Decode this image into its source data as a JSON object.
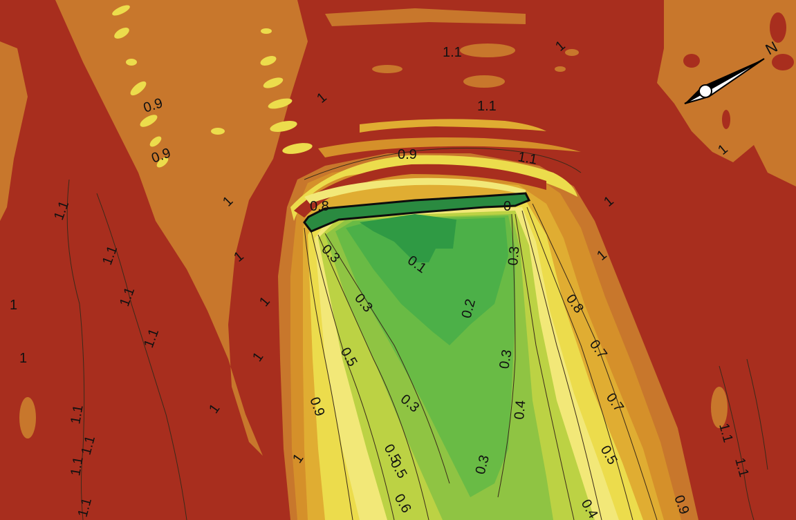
{
  "legend_colors": {
    "red": "#a82e1e",
    "orange": "#c8772c",
    "dark_orange": "#d5902a",
    "gold": "#e0ad32",
    "yellow": "#ecdc4c",
    "pale_yellow": "#f2e878",
    "lime": "#bcd244",
    "light_green": "#8fc443",
    "green": "#58b545",
    "mid_green": "#41a745",
    "dark_green": "#2a8a40",
    "contour_line": "#3a2a1a",
    "breakwater": "#0d0d0d"
  },
  "north_arrow": {
    "label": "N",
    "icon": "north-arrow-icon"
  },
  "contour_labels": [
    {
      "id": "1-1-top",
      "text": "1.1"
    },
    {
      "id": "1-1-center",
      "text": "1.1"
    },
    {
      "id": "0-9-upleft",
      "text": "0.9"
    },
    {
      "id": "0-9-left",
      "text": "0.9"
    },
    {
      "id": "0-9-center",
      "text": "0.9"
    },
    {
      "id": "1-1-right",
      "text": "1.1"
    },
    {
      "id": "1-far-left-a",
      "text": "1"
    },
    {
      "id": "1-far-left-b",
      "text": "1"
    },
    {
      "id": "1-midleft",
      "text": "1"
    },
    {
      "id": "1-upper",
      "text": "1"
    },
    {
      "id": "1-mid-a",
      "text": "1"
    },
    {
      "id": "1-mid-b",
      "text": "1"
    },
    {
      "id": "1-mid-c",
      "text": "1"
    },
    {
      "id": "1-low",
      "text": "1"
    },
    {
      "id": "1-right-a",
      "text": "1"
    },
    {
      "id": "1-right-b",
      "text": "1"
    },
    {
      "id": "1-top-right",
      "text": "1"
    },
    {
      "id": "1-top-right-b",
      "text": "1"
    },
    {
      "id": "1-far-right",
      "text": "1"
    },
    {
      "id": "0-8-left",
      "text": "0.8"
    },
    {
      "id": "0-breakwater",
      "text": "0"
    },
    {
      "id": "0-1",
      "text": "0.1"
    },
    {
      "id": "0-2",
      "text": "0.2"
    },
    {
      "id": "0-3-a",
      "text": "0.3"
    },
    {
      "id": "0-3-b",
      "text": "0.3"
    },
    {
      "id": "0-3-c",
      "text": "0.3"
    },
    {
      "id": "0-3-d",
      "text": "0.3"
    },
    {
      "id": "0-3-e",
      "text": "0.3"
    },
    {
      "id": "0-3-f",
      "text": "0.3"
    },
    {
      "id": "0-4-a",
      "text": "0.4"
    },
    {
      "id": "0-4-b",
      "text": "0.4"
    },
    {
      "id": "0-5-a",
      "text": "0.5"
    },
    {
      "id": "0-5-b",
      "text": "0.5"
    },
    {
      "id": "0-5-c",
      "text": "0.5"
    },
    {
      "id": "0-5-d",
      "text": "0.5"
    },
    {
      "id": "0-6",
      "text": "0.6"
    },
    {
      "id": "0-7-a",
      "text": "0.7"
    },
    {
      "id": "0-7-b",
      "text": "0.7"
    },
    {
      "id": "0-8-right",
      "text": "0.8"
    },
    {
      "id": "0-9-lower-left",
      "text": "0.9"
    },
    {
      "id": "0-9-lower-right",
      "text": "0.9"
    },
    {
      "id": "1-1-left-a",
      "text": "1.1"
    },
    {
      "id": "1-1-left-b",
      "text": "1.1"
    },
    {
      "id": "1-1-left-c",
      "text": "1.1"
    },
    {
      "id": "1-1-left-d",
      "text": "1.1"
    },
    {
      "id": "1-1-left-e",
      "text": "1.1"
    },
    {
      "id": "1-1-left-f",
      "text": "1.1"
    },
    {
      "id": "1-1-left-g",
      "text": "1.1"
    },
    {
      "id": "1-1-left-h",
      "text": "1.1"
    },
    {
      "id": "1-1-lower-right-a",
      "text": "1.1"
    },
    {
      "id": "1-1-lower-right-b",
      "text": "1.1"
    }
  ]
}
